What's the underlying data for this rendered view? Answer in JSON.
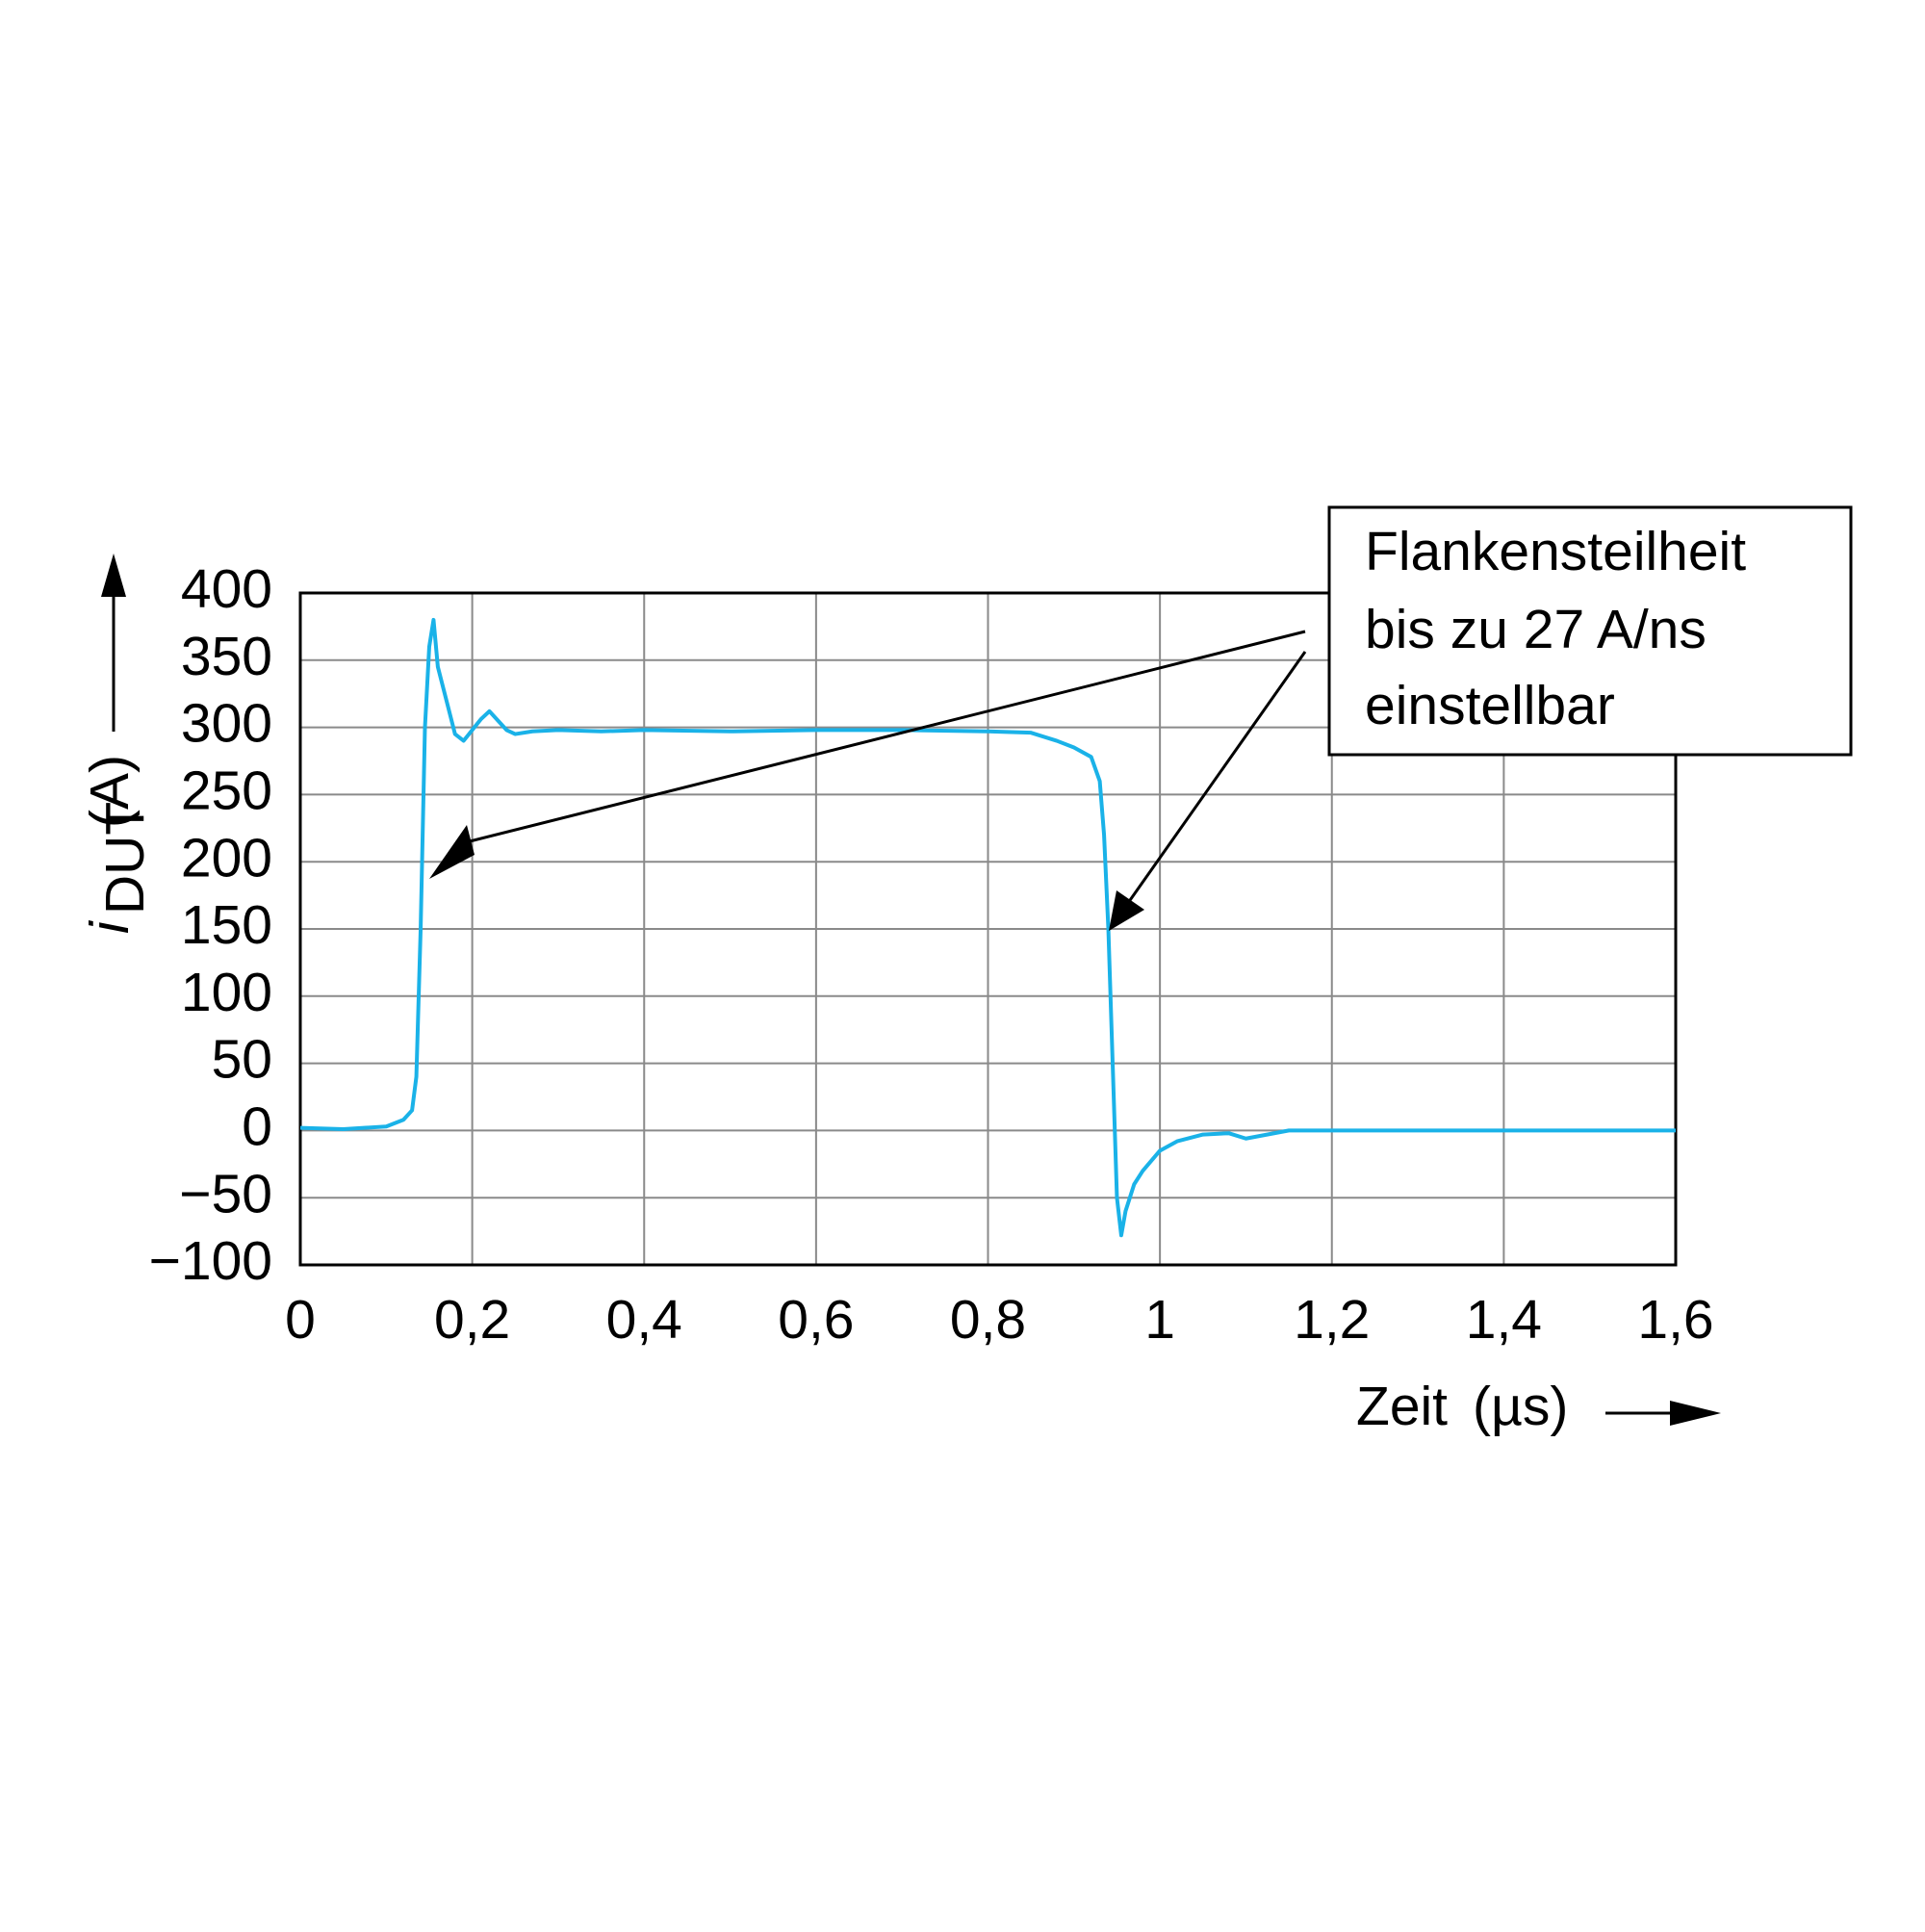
{
  "chart_data": {
    "type": "line",
    "ylabel": {
      "symbol": "i",
      "subscript": "DUT",
      "unit": "(A)"
    },
    "xlabel": {
      "name": "Zeit",
      "unit": "(µs)"
    },
    "annotation": [
      "Flankensteilheit",
      "bis zu 27 A/ns",
      "einstellbar"
    ],
    "xlim": [
      0,
      1.6
    ],
    "ylim": [
      -100,
      400
    ],
    "xticks": [
      0,
      {
        "value": 0.2,
        "label": "0,2"
      },
      {
        "value": 0.4,
        "label": "0,4"
      },
      {
        "value": 0.6,
        "label": "0,6"
      },
      {
        "value": 0.8,
        "label": "0,8"
      },
      1,
      {
        "value": 1.2,
        "label": "1,2"
      },
      {
        "value": 1.4,
        "label": "1,4"
      },
      {
        "value": 1.6,
        "label": "1,6"
      }
    ],
    "yticks": [
      {
        "value": -100,
        "label": "−100"
      },
      {
        "value": -50,
        "label": "−50"
      },
      0,
      50,
      100,
      150,
      200,
      250,
      300,
      350,
      400
    ],
    "grid": true,
    "series": [
      {
        "color": "#1ab2e8",
        "x": [
          0,
          0.05,
          0.1,
          0.12,
          0.13,
          0.135,
          0.14,
          0.145,
          0.15,
          0.155,
          0.16,
          0.17,
          0.18,
          0.19,
          0.2,
          0.21,
          0.22,
          0.23,
          0.24,
          0.25,
          0.27,
          0.3,
          0.35,
          0.4,
          0.5,
          0.6,
          0.7,
          0.8,
          0.85,
          0.88,
          0.9,
          0.92,
          0.93,
          0.935,
          0.94,
          0.945,
          0.95,
          0.955,
          0.96,
          0.97,
          0.98,
          1.0,
          1.02,
          1.05,
          1.08,
          1.1,
          1.15,
          1.2,
          1.3,
          1.4,
          1.5,
          1.6
        ],
        "values": [
          2,
          1,
          3,
          8,
          15,
          40,
          150,
          300,
          360,
          380,
          345,
          320,
          295,
          290,
          298,
          306,
          312,
          305,
          298,
          295,
          297,
          298,
          297,
          298,
          297,
          298,
          298,
          297,
          296,
          290,
          285,
          278,
          260,
          220,
          150,
          50,
          -50,
          -78,
          -60,
          -40,
          -30,
          -15,
          -8,
          -3,
          -2,
          -6,
          0,
          0,
          0,
          0,
          0,
          0
        ]
      }
    ]
  }
}
